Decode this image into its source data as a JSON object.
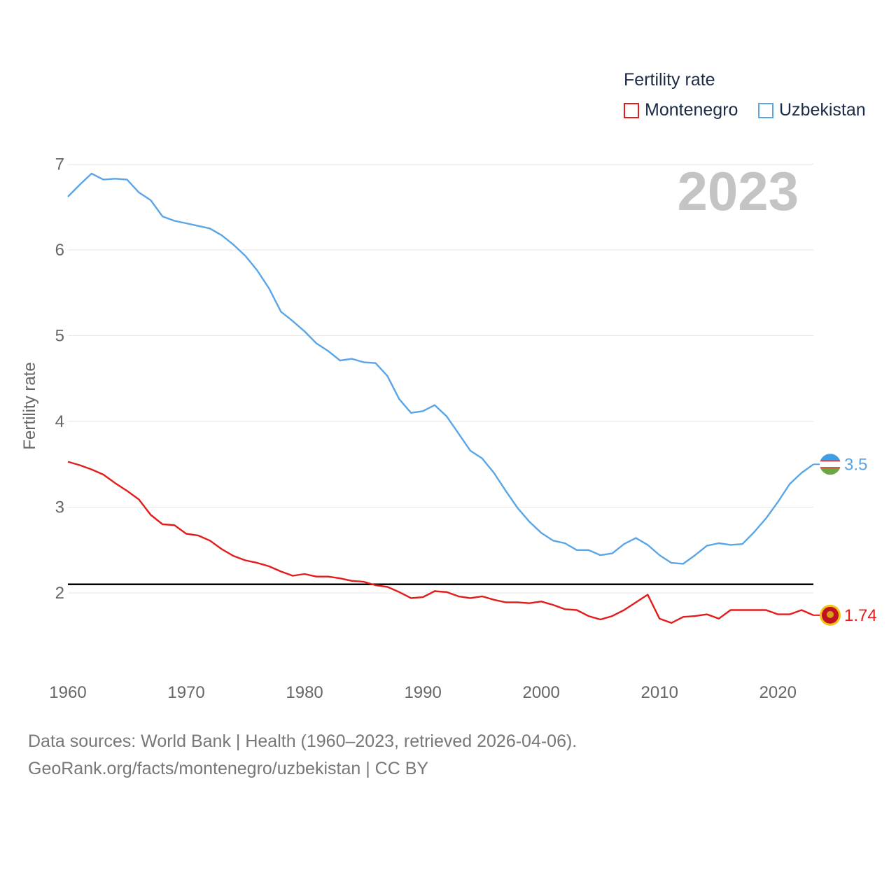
{
  "legend": {
    "title": "Fertility rate",
    "items": [
      {
        "label": "Montenegro",
        "color": "#e31b1b"
      },
      {
        "label": "Uzbekistan",
        "color": "#5aa5e6"
      }
    ]
  },
  "year_badge": "2023",
  "source": {
    "line1": "Data sources: World Bank | Health (1960–2023, retrieved 2026-04-06).",
    "line2": "GeoRank.org/facts/montenegro/uzbekistan | CC BY"
  },
  "colors": {
    "montenegro": "#e31b1b",
    "uzbekistan": "#5aa5e6",
    "reference": "#000000",
    "grid": "#e6e6e6"
  },
  "chart_data": {
    "type": "line",
    "title": "Fertility rate",
    "xlabel": "",
    "ylabel": "Fertility rate",
    "xlim": [
      1960,
      2023
    ],
    "ylim": [
      1.2,
      7.2
    ],
    "x_ticks": [
      1960,
      1970,
      1980,
      1990,
      2000,
      2010,
      2020
    ],
    "y_ticks": [
      2,
      3,
      4,
      5,
      6,
      7
    ],
    "reference_line": 2.1,
    "x": [
      1960,
      1961,
      1962,
      1963,
      1964,
      1965,
      1966,
      1967,
      1968,
      1969,
      1970,
      1971,
      1972,
      1973,
      1974,
      1975,
      1976,
      1977,
      1978,
      1979,
      1980,
      1981,
      1982,
      1983,
      1984,
      1985,
      1986,
      1987,
      1988,
      1989,
      1990,
      1991,
      1992,
      1993,
      1994,
      1995,
      1996,
      1997,
      1998,
      1999,
      2000,
      2001,
      2002,
      2003,
      2004,
      2005,
      2006,
      2007,
      2008,
      2009,
      2010,
      2011,
      2012,
      2013,
      2014,
      2015,
      2016,
      2017,
      2018,
      2019,
      2020,
      2021,
      2022,
      2023
    ],
    "series": [
      {
        "name": "Montenegro",
        "end_label": "1.74",
        "values": [
          3.53,
          3.49,
          3.44,
          3.38,
          3.28,
          3.19,
          3.09,
          2.91,
          2.8,
          2.79,
          2.69,
          2.67,
          2.61,
          2.51,
          2.43,
          2.38,
          2.35,
          2.31,
          2.25,
          2.2,
          2.22,
          2.19,
          2.19,
          2.17,
          2.14,
          2.13,
          2.09,
          2.07,
          2.01,
          1.94,
          1.95,
          2.02,
          2.01,
          1.96,
          1.94,
          1.96,
          1.92,
          1.89,
          1.89,
          1.88,
          1.9,
          1.86,
          1.81,
          1.8,
          1.73,
          1.69,
          1.73,
          1.8,
          1.89,
          1.98,
          1.7,
          1.65,
          1.72,
          1.73,
          1.75,
          1.7,
          1.8,
          1.8,
          1.8,
          1.8,
          1.75,
          1.75,
          1.8,
          1.74
        ]
      },
      {
        "name": "Uzbekistan",
        "end_label": "3.5",
        "values": [
          6.62,
          6.76,
          6.89,
          6.82,
          6.83,
          6.82,
          6.67,
          6.58,
          6.39,
          6.34,
          6.31,
          6.28,
          6.25,
          6.17,
          6.06,
          5.93,
          5.76,
          5.55,
          5.28,
          5.17,
          5.05,
          4.91,
          4.82,
          4.71,
          4.73,
          4.69,
          4.68,
          4.53,
          4.26,
          4.1,
          4.12,
          4.19,
          4.06,
          3.86,
          3.66,
          3.57,
          3.4,
          3.19,
          2.99,
          2.83,
          2.7,
          2.61,
          2.58,
          2.5,
          2.5,
          2.44,
          2.46,
          2.57,
          2.64,
          2.56,
          2.44,
          2.35,
          2.34,
          2.44,
          2.55,
          2.58,
          2.56,
          2.57,
          2.71,
          2.87,
          3.06,
          3.27,
          3.4,
          3.5
        ]
      }
    ]
  }
}
